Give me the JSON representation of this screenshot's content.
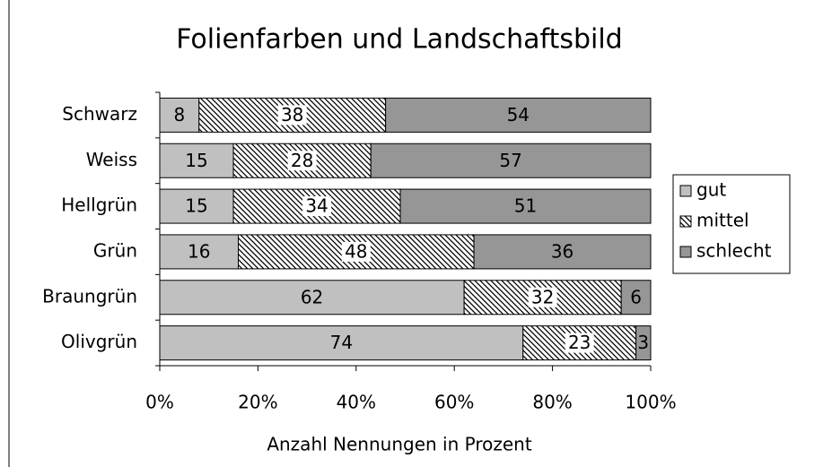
{
  "chart_data": {
    "type": "bar",
    "orientation": "horizontal",
    "stacked": true,
    "title": "Folienfarben und Landschaftsbild",
    "x_label": "Anzahl  Nennungen  in Prozent",
    "categories": [
      "Schwarz",
      "Weiss",
      "Hellgrün",
      "Grün",
      "Braungrün",
      "Olivgrün"
    ],
    "series": [
      {
        "name": "gut",
        "color": "#c0c0c0",
        "values": [
          8,
          15,
          15,
          16,
          62,
          74
        ]
      },
      {
        "name": "mittel",
        "color": "#000000",
        "pattern": "diagonal",
        "values": [
          38,
          28,
          34,
          48,
          32,
          23
        ]
      },
      {
        "name": "schlecht",
        "color": "#969696",
        "values": [
          54,
          57,
          51,
          36,
          6,
          3
        ]
      }
    ],
    "xlim": [
      0,
      100
    ],
    "xticks": [
      {
        "value": 0,
        "label": "0%"
      },
      {
        "value": 20,
        "label": "20%"
      },
      {
        "value": 40,
        "label": "40%"
      },
      {
        "value": 60,
        "label": "60%"
      },
      {
        "value": 80,
        "label": "80%"
      },
      {
        "value": 100,
        "label": "100%"
      }
    ],
    "grid": false,
    "legend": "right"
  }
}
